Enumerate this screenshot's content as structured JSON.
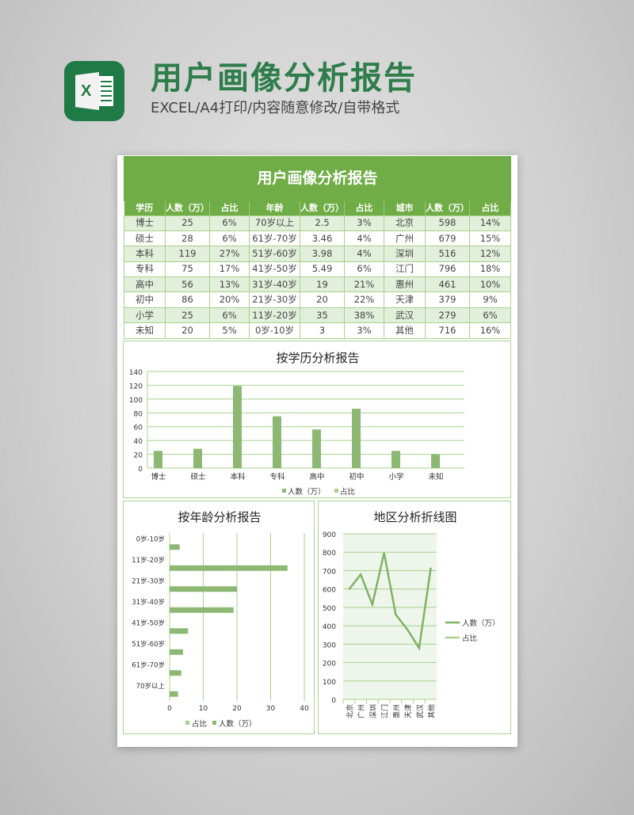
{
  "header": {
    "logo_letter": "X",
    "title": "用户画像分析报告",
    "subtitle": "EXCEL/A4打印/内容随意修改/自带格式"
  },
  "sheet": {
    "title": "用户画像分析报告",
    "columns": [
      "学历",
      "人数（万）",
      "占比",
      "年龄",
      "人数（万）",
      "占比",
      "城市",
      "人数（万）",
      "占比"
    ],
    "rows": [
      [
        "博士",
        "25",
        "6%",
        "70岁以上",
        "2.5",
        "3%",
        "北京",
        "598",
        "14%"
      ],
      [
        "硕士",
        "28",
        "6%",
        "61岁-70岁",
        "3.46",
        "4%",
        "广州",
        "679",
        "15%"
      ],
      [
        "本科",
        "119",
        "27%",
        "51岁-60岁",
        "3.98",
        "4%",
        "深圳",
        "516",
        "12%"
      ],
      [
        "专科",
        "75",
        "17%",
        "41岁-50岁",
        "5.49",
        "6%",
        "江门",
        "796",
        "18%"
      ],
      [
        "高中",
        "56",
        "13%",
        "31岁-40岁",
        "19",
        "21%",
        "惠州",
        "461",
        "10%"
      ],
      [
        "初中",
        "86",
        "20%",
        "21岁-30岁",
        "20",
        "22%",
        "天津",
        "379",
        "9%"
      ],
      [
        "小学",
        "25",
        "6%",
        "11岁-20岁",
        "35",
        "38%",
        "武汉",
        "279",
        "6%"
      ],
      [
        "未知",
        "20",
        "5%",
        "0岁-10岁",
        "3",
        "3%",
        "其他",
        "716",
        "16%"
      ]
    ]
  },
  "colors": {
    "accent": "#70ad47",
    "bar": "#8cb873",
    "line": "#7fb366",
    "light": "#a9d18e",
    "plot_bg": "#eef5ea"
  },
  "chart_data": [
    {
      "type": "bar",
      "title": "按学历分析报告",
      "categories": [
        "博士",
        "硕士",
        "本科",
        "专科",
        "高中",
        "初中",
        "小学",
        "未知"
      ],
      "series": [
        {
          "name": "人数（万）",
          "values": [
            25,
            28,
            119,
            75,
            56,
            86,
            25,
            20
          ]
        },
        {
          "name": "占比",
          "values": [
            0.06,
            0.06,
            0.27,
            0.17,
            0.13,
            0.2,
            0.06,
            0.05
          ]
        }
      ],
      "ylim": [
        0,
        140
      ],
      "yticks": [
        0,
        20,
        40,
        60,
        80,
        100,
        120,
        140
      ],
      "grid": true,
      "legend": "bottom"
    },
    {
      "type": "bar",
      "orientation": "horizontal",
      "title": "按年龄分析报告",
      "categories": [
        "0岁-10岁",
        "11岁-20岁",
        "21岁-30岁",
        "31岁-40岁",
        "41岁-50岁",
        "51岁-60岁",
        "61岁-70岁",
        "70岁以上"
      ],
      "series": [
        {
          "name": "占比",
          "values": [
            0.03,
            0.38,
            0.22,
            0.21,
            0.06,
            0.04,
            0.04,
            0.03
          ]
        },
        {
          "name": "人数（万）",
          "values": [
            3,
            35,
            20,
            19,
            5.49,
            3.98,
            3.46,
            2.5
          ]
        }
      ],
      "xlim": [
        0,
        40
      ],
      "xticks": [
        0,
        10,
        20,
        30,
        40
      ],
      "grid": true,
      "legend": "bottom"
    },
    {
      "type": "line",
      "title": "地区分析折线图",
      "categories": [
        "北京",
        "广州",
        "深圳",
        "江门",
        "惠州",
        "天津",
        "武汉",
        "其他"
      ],
      "series": [
        {
          "name": "人数（万）",
          "values": [
            598,
            679,
            516,
            796,
            461,
            379,
            279,
            716
          ]
        },
        {
          "name": "占比",
          "values": [
            0.14,
            0.15,
            0.12,
            0.18,
            0.1,
            0.09,
            0.06,
            0.16
          ]
        }
      ],
      "ylim": [
        0,
        900
      ],
      "yticks": [
        0,
        100,
        200,
        300,
        400,
        500,
        600,
        700,
        800,
        900
      ],
      "grid": true,
      "legend": "right"
    }
  ]
}
